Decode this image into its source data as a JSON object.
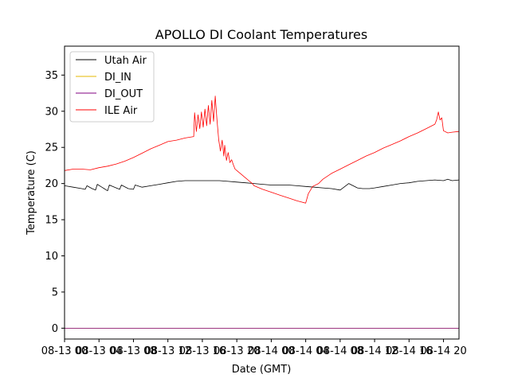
{
  "chart_data": {
    "type": "line",
    "title": "APOLLO DI Coolant Temperatures",
    "xlabel": "Date (GMT)",
    "ylabel": "Temperature (C)",
    "x_unit": "hours since 08-13 00:00 GMT",
    "xlim": [
      0,
      45.8
    ],
    "ylim": [
      -1.5,
      39
    ],
    "grid": false,
    "legend_position": "top-left",
    "xticks": [
      {
        "value": 0,
        "label": "08-13 00"
      },
      {
        "value": 4,
        "label": "08-13 04"
      },
      {
        "value": 8,
        "label": "08-13 08"
      },
      {
        "value": 12,
        "label": "08-13 12"
      },
      {
        "value": 16,
        "label": "08-13 16"
      },
      {
        "value": 20,
        "label": "08-13 20"
      },
      {
        "value": 24,
        "label": "08-14 00"
      },
      {
        "value": 28,
        "label": "08-14 04"
      },
      {
        "value": 32,
        "label": "08-14 08"
      },
      {
        "value": 36,
        "label": "08-14 12"
      },
      {
        "value": 40,
        "label": "08-14 16"
      },
      {
        "value": 44,
        "label": "08-14 20"
      }
    ],
    "yticks": [
      0,
      5,
      10,
      15,
      20,
      25,
      30,
      35
    ],
    "series": [
      {
        "name": "Utah Air",
        "color": "#000000",
        "x": [
          0,
          1,
          2,
          2.4,
          2.6,
          3.2,
          3.6,
          3.8,
          4.6,
          5.0,
          5.2,
          6.0,
          6.4,
          6.6,
          7.4,
          8.0,
          8.2,
          9,
          10,
          11,
          12,
          13,
          14,
          15,
          16,
          17,
          18,
          19,
          20,
          21,
          22,
          23,
          24,
          25,
          26,
          27,
          28,
          29,
          30,
          31,
          32,
          33,
          34,
          34.6,
          34.8,
          35.4,
          36,
          37,
          38,
          39,
          40,
          41,
          42,
          43,
          44,
          44.5,
          45,
          45.8
        ],
        "y": [
          19.7,
          19.5,
          19.3,
          19.2,
          19.7,
          19.3,
          19.1,
          19.9,
          19.3,
          19.0,
          19.8,
          19.4,
          19.2,
          19.8,
          19.3,
          19.2,
          19.8,
          19.5,
          19.7,
          19.9,
          20.1,
          20.3,
          20.4,
          20.4,
          20.4,
          20.4,
          20.4,
          20.3,
          20.2,
          20.1,
          20.0,
          19.9,
          19.8,
          19.8,
          19.8,
          19.7,
          19.6,
          19.5,
          19.4,
          19.3,
          19.1,
          20.0,
          19.4,
          19.3,
          19.3,
          19.3,
          19.4,
          19.6,
          19.8,
          20.0,
          20.1,
          20.3,
          20.4,
          20.5,
          20.4,
          20.6,
          20.4,
          20.5
        ]
      },
      {
        "name": "DI_IN",
        "color": "#e6b800",
        "x": [
          0,
          45.8
        ],
        "y": [
          0,
          0
        ]
      },
      {
        "name": "DI_OUT",
        "color": "#800080",
        "x": [
          0,
          45.8
        ],
        "y": [
          0,
          0
        ]
      },
      {
        "name": "ILE Air",
        "color": "#ff0000",
        "x": [
          0,
          1,
          2,
          3,
          4,
          5,
          6,
          7,
          8,
          9,
          10,
          11,
          12,
          13,
          14,
          15,
          15.1,
          15.3,
          15.5,
          15.7,
          15.9,
          16.1,
          16.3,
          16.5,
          16.7,
          16.9,
          17.1,
          17.3,
          17.5,
          17.7,
          17.9,
          18.1,
          18.3,
          18.5,
          18.6,
          18.8,
          19.0,
          19.2,
          19.4,
          19.6,
          19.8,
          20.0,
          20.2,
          20.4,
          20.6,
          20.8,
          21.0,
          21.2,
          21.4,
          21.6,
          21.8,
          22,
          23,
          24,
          25,
          26,
          27,
          28,
          28.3,
          28.8,
          29.5,
          30,
          31,
          32,
          33,
          34,
          35,
          36,
          37,
          38,
          39,
          40,
          41,
          42,
          43,
          43.2,
          43.4,
          43.6,
          43.8,
          44.0,
          44.5,
          45,
          45.8
        ],
        "y": [
          21.8,
          22.0,
          22.0,
          21.9,
          22.2,
          22.4,
          22.7,
          23.1,
          23.6,
          24.2,
          24.8,
          25.3,
          25.8,
          26.0,
          26.3,
          26.5,
          29.8,
          27.2,
          29.5,
          27.6,
          29.9,
          27.8,
          30.3,
          28.0,
          30.8,
          28.2,
          31.5,
          28.6,
          32.1,
          28.8,
          26.0,
          24.5,
          26.0,
          23.8,
          25.3,
          23.2,
          24.3,
          22.9,
          23.3,
          22.6,
          22.0,
          21.8,
          21.6,
          21.4,
          21.2,
          21.0,
          20.8,
          20.6,
          20.4,
          20.2,
          20.0,
          19.7,
          19.2,
          18.8,
          18.4,
          18.0,
          17.6,
          17.3,
          18.6,
          19.6,
          20.0,
          20.6,
          21.4,
          22.0,
          22.6,
          23.2,
          23.8,
          24.3,
          24.9,
          25.4,
          25.9,
          26.5,
          27.0,
          27.6,
          28.2,
          28.8,
          29.9,
          28.8,
          29.1,
          27.3,
          27.0,
          27.1,
          27.2
        ]
      }
    ]
  }
}
